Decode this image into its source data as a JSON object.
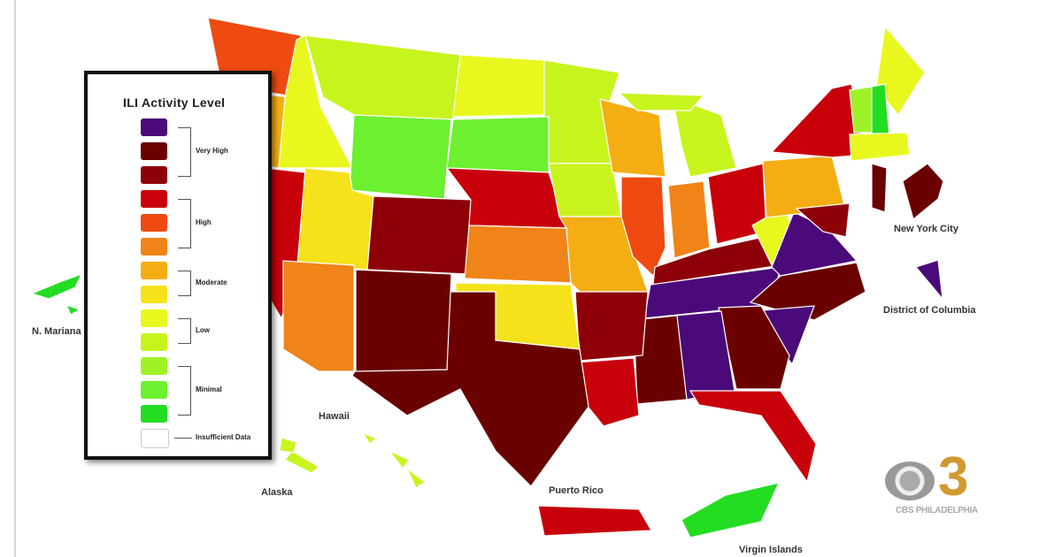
{
  "legend": {
    "title": "ILI Activity Level",
    "levels": [
      {
        "color": "#4b0a7a"
      },
      {
        "color": "#6a0000"
      },
      {
        "color": "#8e0008"
      },
      {
        "color": "#c8000a"
      },
      {
        "color": "#ee4a12"
      },
      {
        "color": "#f08418"
      },
      {
        "color": "#f4ae14"
      },
      {
        "color": "#f5e21a"
      },
      {
        "color": "#e8f81e"
      },
      {
        "color": "#c8f41e"
      },
      {
        "color": "#a0f228"
      },
      {
        "color": "#6cf030"
      },
      {
        "color": "#22dd22"
      }
    ],
    "groups": [
      "Very High",
      "High",
      "Moderate",
      "Low",
      "Minimal"
    ],
    "insufficient": {
      "label": "Insufficient Data",
      "color": "#ffffff"
    }
  },
  "labels": {
    "mariana": "N. Mariana",
    "hawaii": "Hawaii",
    "alaska": "Alaska",
    "puerto_rico": "Puerto Rico",
    "virgin_islands": "Virgin Islands",
    "nyc": "New York City",
    "dc": "District of Columbia"
  },
  "regions": [
    {
      "name": "Washington",
      "level": 4
    },
    {
      "name": "Oregon",
      "level": 6
    },
    {
      "name": "Idaho",
      "level": 8
    },
    {
      "name": "Montana",
      "level": 9
    },
    {
      "name": "North Dakota",
      "level": 8
    },
    {
      "name": "Minnesota",
      "level": 9
    },
    {
      "name": "Wyoming",
      "level": 11
    },
    {
      "name": "South Dakota",
      "level": 11
    },
    {
      "name": "California/Nevada",
      "level": 3
    },
    {
      "name": "Utah",
      "level": 7
    },
    {
      "name": "Colorado",
      "level": 2
    },
    {
      "name": "Nebraska",
      "level": 3
    },
    {
      "name": "Iowa",
      "level": 9
    },
    {
      "name": "Kansas",
      "level": 5
    },
    {
      "name": "Missouri",
      "level": 6
    },
    {
      "name": "Wisconsin",
      "level": 6
    },
    {
      "name": "Illinois",
      "level": 4
    },
    {
      "name": "Michigan",
      "level": 9
    },
    {
      "name": "Indiana",
      "level": 5
    },
    {
      "name": "Ohio",
      "level": 3
    },
    {
      "name": "Kentucky",
      "level": 2
    },
    {
      "name": "Tennessee",
      "level": 0
    },
    {
      "name": "West Virginia",
      "level": 8
    },
    {
      "name": "Virginia",
      "level": 0
    },
    {
      "name": "Pennsylvania",
      "level": 6
    },
    {
      "name": "New York",
      "level": 3
    },
    {
      "name": "North Carolina",
      "level": 1
    },
    {
      "name": "South Carolina",
      "level": 0
    },
    {
      "name": "Georgia",
      "level": 1
    },
    {
      "name": "Alabama",
      "level": 0
    },
    {
      "name": "Mississippi",
      "level": 1
    },
    {
      "name": "Florida",
      "level": 3
    },
    {
      "name": "Louisiana",
      "level": 3
    },
    {
      "name": "Arkansas",
      "level": 2
    },
    {
      "name": "Oklahoma",
      "level": 7
    },
    {
      "name": "Texas",
      "level": 1
    },
    {
      "name": "New Mexico",
      "level": 1
    },
    {
      "name": "Arizona",
      "level": 5
    },
    {
      "name": "Maine",
      "level": 8
    },
    {
      "name": "Vermont",
      "level": 10
    },
    {
      "name": "New Hampshire",
      "level": 12
    },
    {
      "name": "Massachusetts/CT/RI",
      "level": 8
    },
    {
      "name": "New Jersey",
      "level": 1
    },
    {
      "name": "Maryland/Delaware",
      "level": 2
    },
    {
      "name": "New York City",
      "level": 1
    },
    {
      "name": "District of Columbia",
      "level": 0
    },
    {
      "name": "Puerto Rico",
      "level": 3
    },
    {
      "name": "Virgin Islands",
      "level": 12
    },
    {
      "name": "Hawaii",
      "level": 9
    },
    {
      "name": "Alaska",
      "level": 9
    },
    {
      "name": "N. Mariana",
      "level": 12
    }
  ],
  "logo": {
    "text": "CBS PHILADELPHIA",
    "mark": "3"
  }
}
